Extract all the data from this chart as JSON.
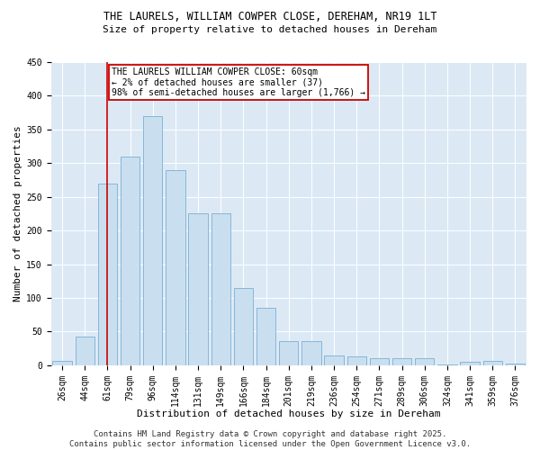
{
  "title_line1": "THE LAURELS, WILLIAM COWPER CLOSE, DEREHAM, NR19 1LT",
  "title_line2": "Size of property relative to detached houses in Dereham",
  "xlabel": "Distribution of detached houses by size in Dereham",
  "ylabel": "Number of detached properties",
  "categories": [
    "26sqm",
    "44sqm",
    "61sqm",
    "79sqm",
    "96sqm",
    "114sqm",
    "131sqm",
    "149sqm",
    "166sqm",
    "184sqm",
    "201sqm",
    "219sqm",
    "236sqm",
    "254sqm",
    "271sqm",
    "289sqm",
    "306sqm",
    "324sqm",
    "341sqm",
    "359sqm",
    "376sqm"
  ],
  "values": [
    7,
    42,
    270,
    310,
    370,
    290,
    225,
    225,
    115,
    85,
    36,
    36,
    15,
    13,
    10,
    10,
    10,
    1,
    5,
    6,
    2
  ],
  "bar_color": "#c9dff0",
  "bar_edge_color": "#7aafd4",
  "vline_x_index": 2,
  "vline_color": "#cc0000",
  "annotation_text": "THE LAURELS WILLIAM COWPER CLOSE: 60sqm\n← 2% of detached houses are smaller (37)\n98% of semi-detached houses are larger (1,766) →",
  "annotation_box_color": "#cc0000",
  "ylim": [
    0,
    450
  ],
  "yticks": [
    0,
    50,
    100,
    150,
    200,
    250,
    300,
    350,
    400,
    450
  ],
  "background_color": "#dce9f5",
  "footer_line1": "Contains HM Land Registry data © Crown copyright and database right 2025.",
  "footer_line2": "Contains public sector information licensed under the Open Government Licence v3.0.",
  "title_fontsize": 8.5,
  "subtitle_fontsize": 8,
  "axis_label_fontsize": 8,
  "tick_fontsize": 7,
  "annotation_fontsize": 7,
  "footer_fontsize": 6.5
}
